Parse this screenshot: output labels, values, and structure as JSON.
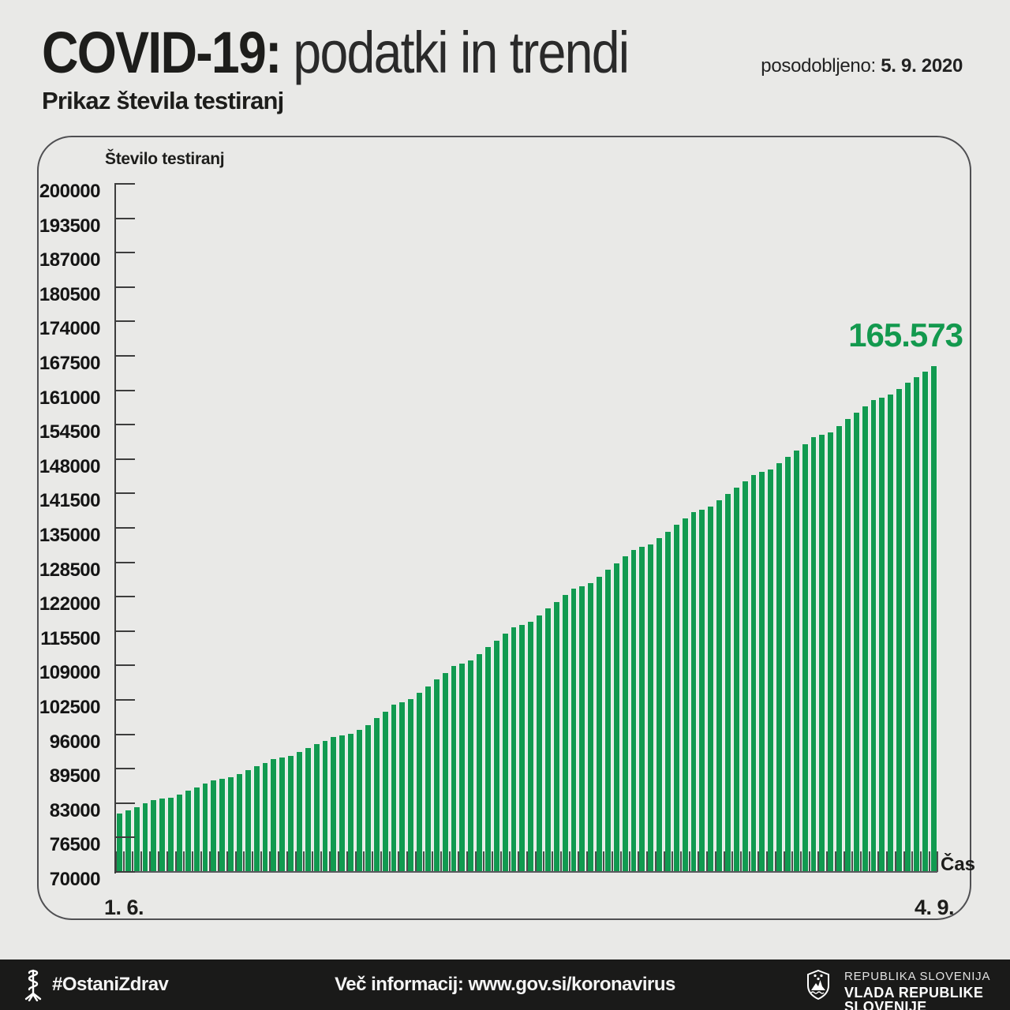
{
  "header": {
    "title_strong": "COVID-19:",
    "title_light": "podatki in trendi",
    "updated_label": "posodobljeno:",
    "updated_date": "5. 9. 2020",
    "subtitle": "Prikaz števila testiranj"
  },
  "chart_data": {
    "type": "bar",
    "title": "Prikaz števila testiranj",
    "ylabel": "Število testiranj",
    "xlabel": "Čas",
    "x_first_tick": "1. 6.",
    "x_last_tick": "4. 9.",
    "ylim": [
      70000,
      200000
    ],
    "ytick_step": 6500,
    "grid": false,
    "legend": "none",
    "bar_color": "#119a50",
    "peak_label": "165.573",
    "peak_value": 165573,
    "peak_label_color": "#13994e",
    "ytick_labels": [
      "200000",
      "193500",
      "187000",
      "180500",
      "174000",
      "167500",
      "161000",
      "154500",
      "148000",
      "141500",
      "135000",
      "128500",
      "122000",
      "115500",
      "109000",
      "102500",
      "96000",
      "89500",
      "83000",
      "76500",
      "70000"
    ],
    "values": [
      81000,
      81620,
      82260,
      82910,
      83550,
      83830,
      84050,
      84690,
      85350,
      86020,
      86670,
      87310,
      87610,
      87850,
      88530,
      89230,
      89940,
      90640,
      91330,
      91650,
      91910,
      92630,
      93380,
      94150,
      94750,
      95500,
      95850,
      96130,
      96910,
      97800,
      99060,
      100330,
      101590,
      102090,
      102590,
      103850,
      105110,
      106380,
      107640,
      108900,
      109400,
      109900,
      111170,
      112430,
      113700,
      114960,
      116220,
      116720,
      117220,
      118490,
      119750,
      121010,
      122280,
      123540,
      124040,
      124540,
      125810,
      127070,
      128330,
      129600,
      130900,
      131400,
      131900,
      133110,
      134320,
      135530,
      136750,
      137960,
      138460,
      138960,
      140170,
      141380,
      142600,
      143810,
      145020,
      145520,
      146020,
      147230,
      148450,
      149660,
      150870,
      152080,
      152580,
      153080,
      154300,
      155510,
      156720,
      157930,
      159150,
      159650,
      160150,
      161300,
      162400,
      163500,
      164550,
      165573
    ]
  },
  "footer": {
    "hashtag": "#OstaniZdrav",
    "info": "Več informacij: www.gov.si/koronavirus",
    "org_line1": "REPUBLIKA SLOVENIJA",
    "org_line2": "VLADA REPUBLIKE SLOVENIJE"
  }
}
